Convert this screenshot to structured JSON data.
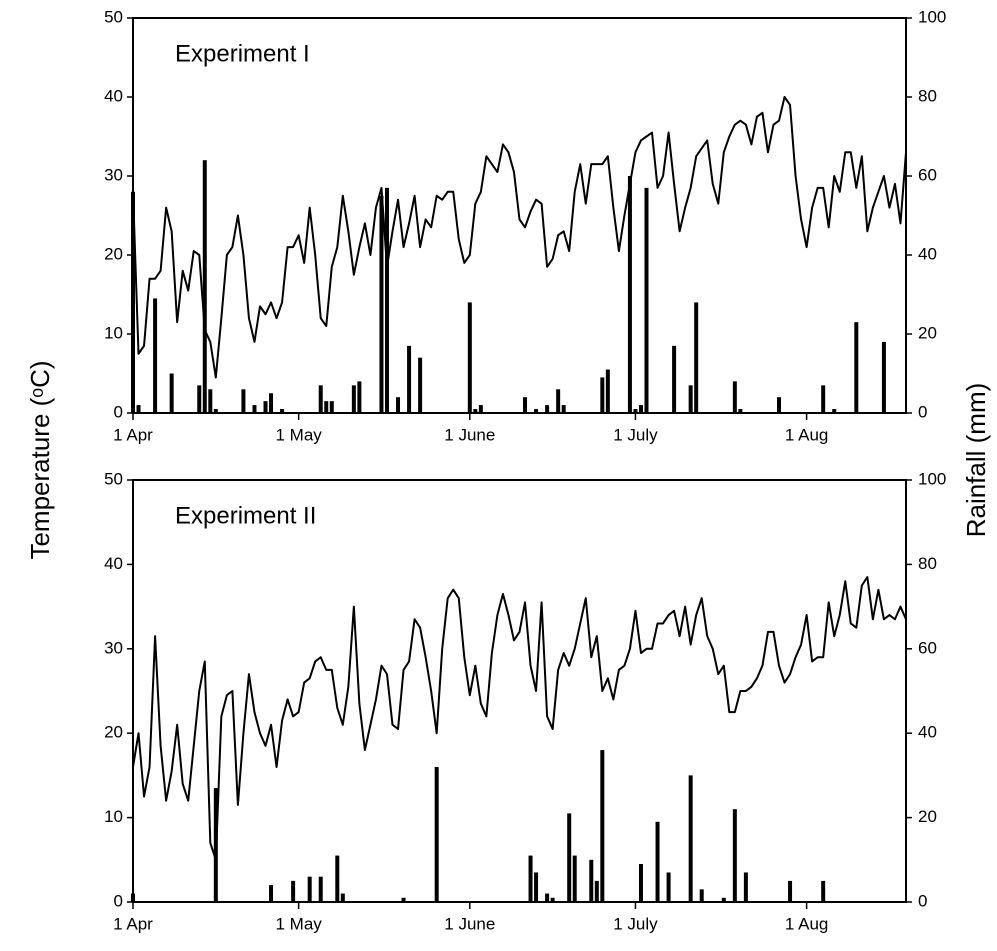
{
  "ylabel": "Temperature (ᵒC)",
  "y2label": "Rainfall (mm)",
  "chart_data": [
    {
      "type": "line_bar",
      "title": "Experiment I",
      "xlim": [
        0,
        140
      ],
      "xticks": [
        {
          "value": 0,
          "label": "1 Apr"
        },
        {
          "value": 30,
          "label": "1 May"
        },
        {
          "value": 61,
          "label": "1 June"
        },
        {
          "value": 91,
          "label": "1 July"
        },
        {
          "value": 122,
          "label": "1 Aug"
        }
      ],
      "ylim": [
        0,
        50
      ],
      "yticks": [
        0,
        10,
        20,
        30,
        40,
        50
      ],
      "y2lim": [
        0,
        100
      ],
      "y2ticks": [
        0,
        20,
        40,
        60,
        80,
        100
      ],
      "series": [
        {
          "type": "line",
          "color": "#000000",
          "x": [
            0,
            1,
            2,
            3,
            4,
            5,
            6,
            7,
            8,
            9,
            10,
            11,
            12,
            13,
            14,
            15,
            16,
            17,
            18,
            19,
            20,
            21,
            22,
            23,
            24,
            25,
            26,
            27,
            28,
            29,
            30,
            31,
            32,
            33,
            34,
            35,
            36,
            37,
            38,
            39,
            40,
            41,
            42,
            43,
            44,
            45,
            46,
            47,
            48,
            49,
            50,
            51,
            52,
            53,
            54,
            55,
            56,
            57,
            58,
            59,
            60,
            61,
            62,
            63,
            64,
            65,
            66,
            67,
            68,
            69,
            70,
            71,
            72,
            73,
            74,
            75,
            76,
            77,
            78,
            79,
            80,
            81,
            82,
            83,
            84,
            85,
            86,
            87,
            88,
            89,
            90,
            91,
            92,
            93,
            94,
            95,
            96,
            97,
            98,
            99,
            100,
            101,
            102,
            103,
            104,
            105,
            106,
            107,
            108,
            109,
            110,
            111,
            112,
            113,
            114,
            115,
            116,
            117,
            118,
            119,
            120,
            121,
            122,
            123,
            124,
            125,
            126,
            127,
            128,
            129,
            130,
            131,
            132,
            133,
            134,
            135,
            136,
            137,
            138,
            139,
            140
          ],
          "values": [
            28,
            7.5,
            8.5,
            17,
            17,
            18,
            26,
            23,
            11.5,
            18,
            15.5,
            20.5,
            20,
            10.5,
            9,
            4.5,
            12,
            20,
            21,
            25,
            20,
            12,
            9,
            13.5,
            12.5,
            14,
            12,
            14,
            21,
            21,
            22.5,
            19,
            26,
            20,
            12,
            11,
            18.5,
            21,
            27.5,
            23,
            17.5,
            21,
            24,
            20,
            26,
            28.5,
            18.5,
            23,
            27,
            21,
            24,
            27.5,
            21,
            24.5,
            23.5,
            27.5,
            27,
            28,
            28,
            22,
            19,
            20,
            26.5,
            28,
            32.5,
            31.5,
            30.5,
            34,
            33,
            30.5,
            24.5,
            23.5,
            25.5,
            27,
            26.5,
            18.5,
            19.5,
            22.5,
            23,
            20.5,
            28,
            31.5,
            26.5,
            31.5,
            31.5,
            31.5,
            32.5,
            26,
            20.5,
            25,
            29,
            33,
            34.5,
            35,
            35.5,
            28.5,
            30,
            35.5,
            29,
            23,
            26,
            28.5,
            32.5,
            33.5,
            34.5,
            29,
            26.5,
            33,
            35,
            36.5,
            37,
            36.5,
            34,
            37.5,
            38,
            33,
            36.5,
            37,
            40,
            39,
            30,
            24.5,
            21,
            26,
            28.5,
            28.5,
            23.5,
            30,
            28,
            33,
            33,
            28.5,
            32.5,
            23,
            26,
            28,
            30,
            26,
            29,
            24,
            33
          ]
        },
        {
          "type": "bar",
          "axis": "y2",
          "color": "#000000",
          "x": [
            0,
            1,
            4,
            7,
            12,
            13,
            14,
            15,
            20,
            22,
            24,
            25,
            27,
            34,
            35,
            36,
            40,
            41,
            45,
            46,
            48,
            50,
            52,
            61,
            62,
            63,
            71,
            73,
            75,
            77,
            78,
            85,
            86,
            90,
            91,
            92,
            93,
            98,
            101,
            102,
            109,
            110,
            117,
            125,
            127,
            131,
            136
          ],
          "values": [
            56,
            2,
            29,
            10,
            7,
            64,
            6,
            1,
            6,
            2,
            3,
            5,
            1,
            7,
            3,
            3,
            7,
            8,
            55,
            57,
            4,
            17,
            14,
            28,
            1,
            2,
            4,
            1,
            2,
            6,
            2,
            9,
            11,
            60,
            1,
            2,
            57,
            17,
            7,
            28,
            8,
            1,
            4,
            7,
            1,
            23,
            18
          ]
        }
      ]
    },
    {
      "type": "line_bar",
      "title": "Experiment II",
      "xlim": [
        0,
        140
      ],
      "xticks": [
        {
          "value": 0,
          "label": "1 Apr"
        },
        {
          "value": 30,
          "label": "1 May"
        },
        {
          "value": 61,
          "label": "1 June"
        },
        {
          "value": 91,
          "label": "1 July"
        },
        {
          "value": 122,
          "label": "1 Aug"
        }
      ],
      "ylim": [
        0,
        50
      ],
      "yticks": [
        0,
        10,
        20,
        30,
        40,
        50
      ],
      "y2lim": [
        0,
        100
      ],
      "y2ticks": [
        0,
        20,
        40,
        60,
        80,
        100
      ],
      "series": [
        {
          "type": "line",
          "color": "#000000",
          "x": [
            0,
            1,
            2,
            3,
            4,
            5,
            6,
            7,
            8,
            9,
            10,
            11,
            12,
            13,
            14,
            15,
            16,
            17,
            18,
            19,
            20,
            21,
            22,
            23,
            24,
            25,
            26,
            27,
            28,
            29,
            30,
            31,
            32,
            33,
            34,
            35,
            36,
            37,
            38,
            39,
            40,
            41,
            42,
            43,
            44,
            45,
            46,
            47,
            48,
            49,
            50,
            51,
            52,
            53,
            54,
            55,
            56,
            57,
            58,
            59,
            60,
            61,
            62,
            63,
            64,
            65,
            66,
            67,
            68,
            69,
            70,
            71,
            72,
            73,
            74,
            75,
            76,
            77,
            78,
            79,
            80,
            81,
            82,
            83,
            84,
            85,
            86,
            87,
            88,
            89,
            90,
            91,
            92,
            93,
            94,
            95,
            96,
            97,
            98,
            99,
            100,
            101,
            102,
            103,
            104,
            105,
            106,
            107,
            108,
            109,
            110,
            111,
            112,
            113,
            114,
            115,
            116,
            117,
            118,
            119,
            120,
            121,
            122,
            123,
            124,
            125,
            126,
            127,
            128,
            129,
            130,
            131,
            132,
            133,
            134,
            135,
            136,
            137,
            138,
            139,
            140
          ],
          "values": [
            16,
            20,
            12.5,
            16,
            31.5,
            18.5,
            12,
            15.5,
            21,
            14,
            12,
            18.5,
            25,
            28.5,
            7,
            5,
            22,
            24.5,
            25,
            11.5,
            20,
            27,
            22.5,
            20,
            18.5,
            21,
            16,
            21.5,
            24,
            22,
            22.5,
            26,
            26.5,
            28.5,
            29,
            27.5,
            27.5,
            23,
            21,
            25.5,
            35,
            23.5,
            18,
            21,
            24,
            28,
            27,
            21,
            20.5,
            27.5,
            28.5,
            33.5,
            32.5,
            29,
            25,
            20,
            30,
            36,
            37,
            36,
            29,
            24.5,
            28,
            23.5,
            22,
            29.5,
            34,
            36.5,
            34,
            31,
            32,
            35.5,
            28,
            25,
            35.5,
            22,
            20.5,
            27.5,
            29.5,
            28,
            30,
            33,
            36,
            29,
            31.5,
            25,
            26.5,
            24,
            27.5,
            28,
            30,
            34.5,
            29.5,
            30,
            30,
            33,
            33,
            34,
            34.5,
            31.5,
            35,
            30.5,
            34,
            36,
            31.5,
            30,
            27,
            28,
            22.5,
            22.5,
            25,
            25,
            25.5,
            26.5,
            28,
            32,
            32,
            28,
            26,
            27,
            29,
            30.5,
            34,
            28.5,
            29,
            29,
            35.5,
            31.5,
            34,
            38,
            33,
            32.5,
            37.5,
            38.5,
            33.5,
            37,
            33.5,
            34,
            33.5,
            35,
            33.5
          ]
        },
        {
          "type": "bar",
          "axis": "y2",
          "color": "#000000",
          "x": [
            0,
            15,
            25,
            29,
            32,
            34,
            37,
            38,
            49,
            55,
            72,
            73,
            75,
            76,
            79,
            80,
            83,
            84,
            85,
            92,
            95,
            97,
            101,
            103,
            107,
            109,
            111,
            119,
            125
          ],
          "values": [
            2,
            27,
            4,
            5,
            6,
            6,
            11,
            2,
            1,
            32,
            11,
            7,
            2,
            1,
            21,
            11,
            10,
            5,
            36,
            9,
            19,
            7,
            30,
            3,
            1,
            22,
            7,
            5,
            5
          ]
        }
      ]
    }
  ]
}
